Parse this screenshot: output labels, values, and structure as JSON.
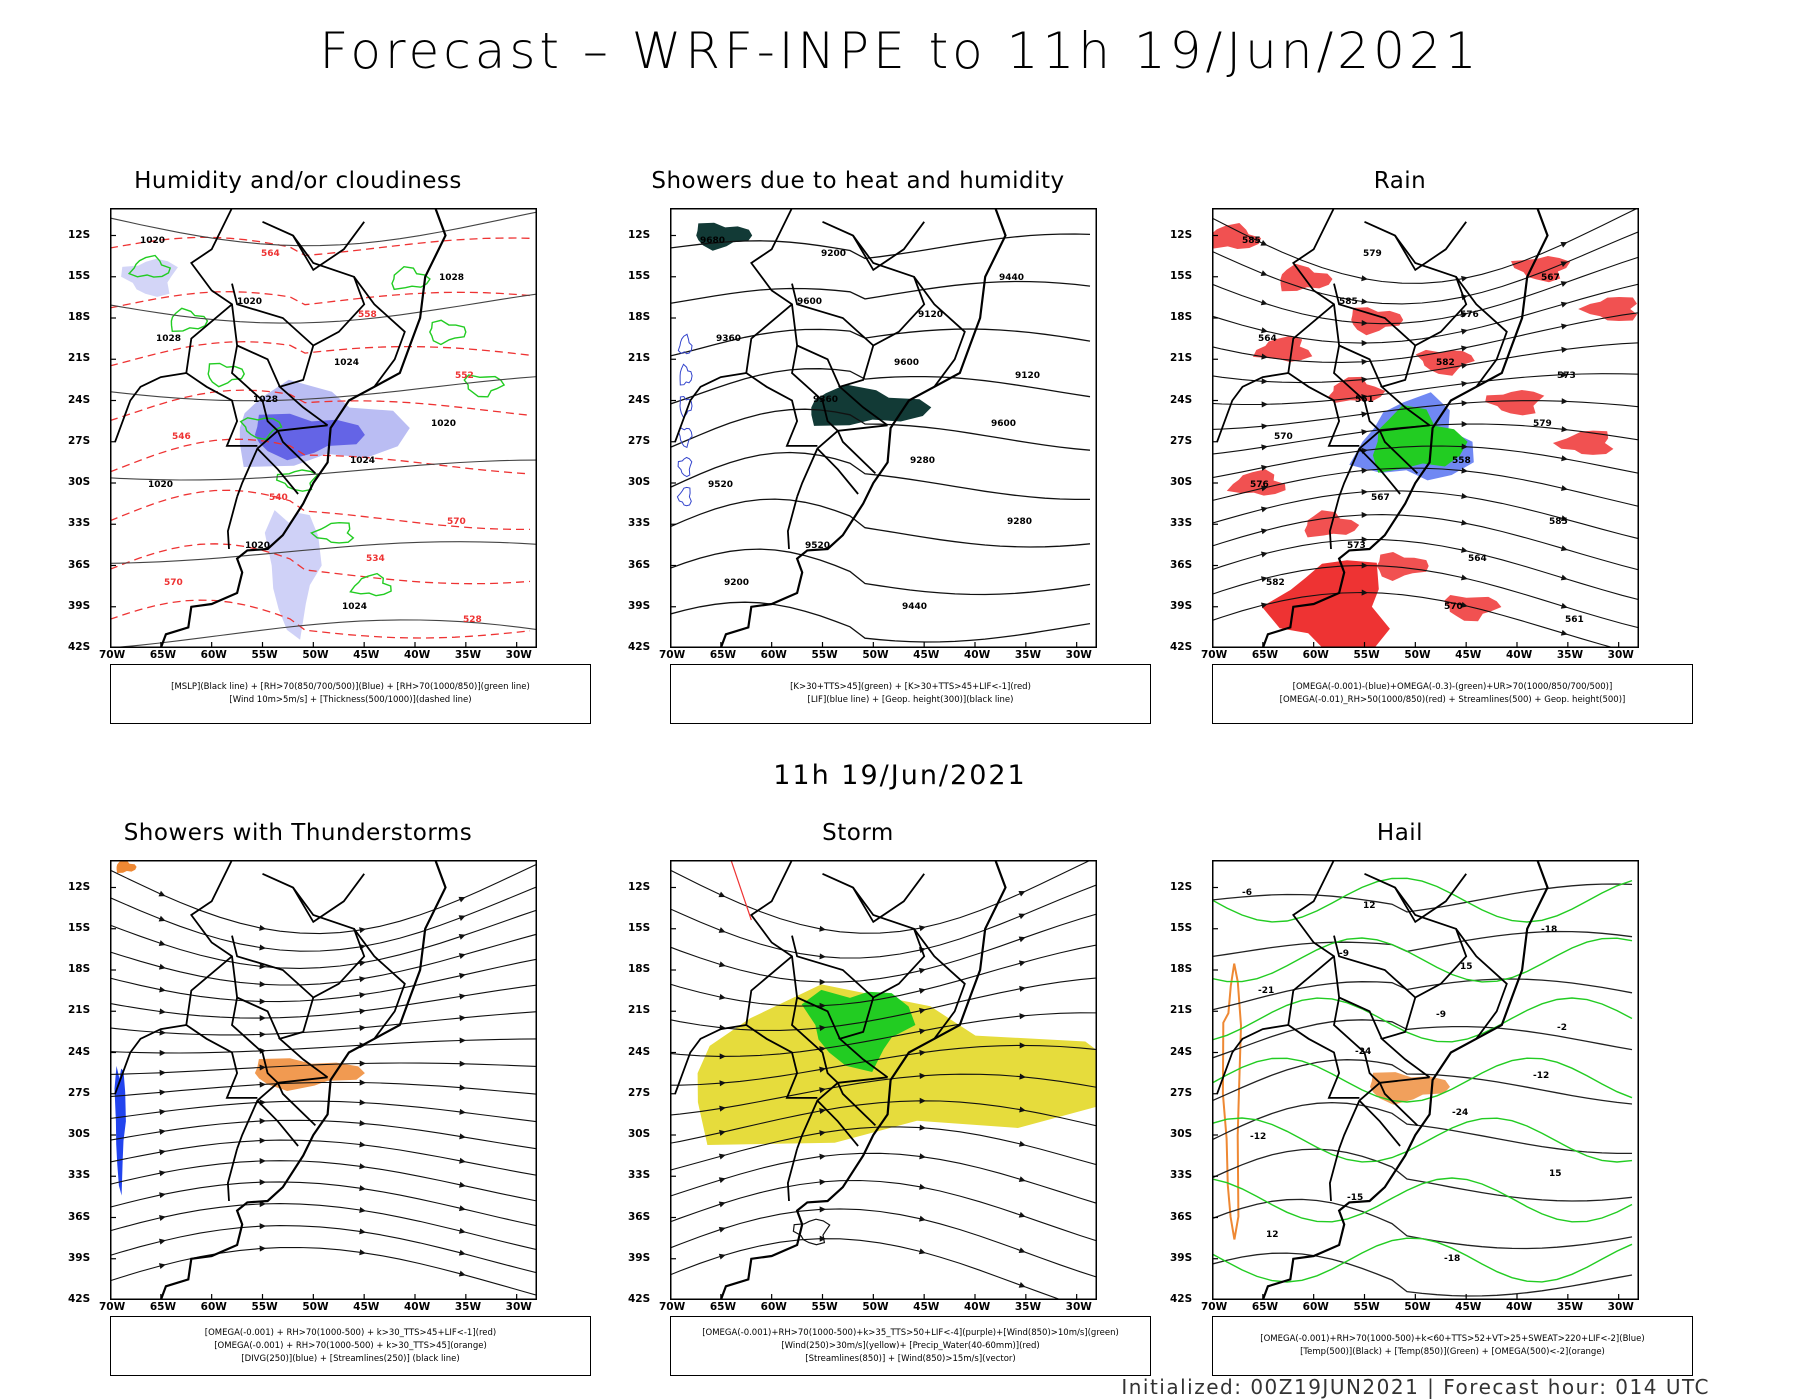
{
  "page": {
    "title": "Forecast – WRF-INPE to 11h 19/Jun/2021",
    "subtitle": "11h 19/Jun/2021",
    "footer": "Initialized: 00Z19JUN2021 | Forecast hour: 014 UTC"
  },
  "axes": {
    "lat_labels": [
      "12S",
      "15S",
      "18S",
      "21S",
      "24S",
      "27S",
      "30S",
      "33S",
      "36S",
      "39S",
      "42S"
    ],
    "lon_labels": [
      "70W",
      "65W",
      "60W",
      "55W",
      "50W",
      "45W",
      "40W",
      "35W",
      "30W"
    ]
  },
  "panels": [
    {
      "title": "Humidity and/or cloudiness",
      "legend": [
        "[MSLP](Black line) + [RH>70(850/700/500)](Blue) + [RH>70(1000/850)](green line)",
        "[Wind 10m>5m/s] + [Thickness(500/1000)](dashed line)"
      ],
      "contours": [
        "1020",
        "1020",
        "1024",
        "1020",
        "1020",
        "1020",
        "1024",
        "1028",
        "1028",
        "1028",
        "1024",
        "570",
        "570",
        "564",
        "558",
        "552",
        "546",
        "540",
        "534",
        "528"
      ]
    },
    {
      "title": "Showers due to heat and humidity",
      "legend": [
        "[K>30+TTS>45](green) + [K>30+TTS>45+LIF<-1](red)",
        "[LIF](blue line) + [Geop. height(300)](black line)"
      ],
      "contours": [
        "9680",
        "9600",
        "9600",
        "9600",
        "9520",
        "9520",
        "9440",
        "9440",
        "9360",
        "9360",
        "9280",
        "9280",
        "9200",
        "9200",
        "9120",
        "9120"
      ]
    },
    {
      "title": "Rain",
      "legend": [
        "[OMEGA(-0.001)-(blue)+OMEGA(-0.3)-(green)+UR>70(1000/850/700/500)]",
        "[OMEGA(-0.01)_RH>50(1000/850)(red) + Streamlines(500) + Geop. height(500)]"
      ],
      "contours": [
        "585",
        "585",
        "582",
        "579",
        "576",
        "573",
        "570",
        "567",
        "564",
        "561",
        "558",
        "585",
        "582",
        "579",
        "576",
        "573",
        "570",
        "567",
        "564",
        "561"
      ]
    },
    {
      "title": "Showers with Thunderstorms",
      "legend": [
        "[OMEGA(-0.001) + RH>70(1000-500) + k>30_TTS>45+LIF<-1](red)",
        "[OMEGA(-0.001) + RH>70(1000-500) + k>30_TTS>45](orange)",
        "[DIVG(250)](blue) + [Streamlines(250)] (black line)"
      ],
      "contours": []
    },
    {
      "title": "Storm",
      "legend": [
        "[OMEGA(-0.001)+RH>70(1000-500)+k>35_TTS>50+LIF<-4](purple)+[Wind(850)>10m/s](green)",
        "[Wind(250)>30m/s](yellow)+ [Precip_Water(40-60mm)](red)",
        "[Streamlines(850)] + [Wind(850)>15m/s](vector)"
      ],
      "contours": []
    },
    {
      "title": "Hail",
      "legend": [
        "[OMEGA(-0.001)+RH>70(1000-500)+k<60+TTS>52+VT>25+SWEAT>220+LIF<-2](Blue)",
        "[Temp(500)](Black) + [Temp(850)](Green) + [OMEGA(500)<-2](orange)"
      ],
      "contours": [
        "-6",
        "-9",
        "-9",
        "-12",
        "-12",
        "-15",
        "-18",
        "-18",
        "-21",
        "-24",
        "-24",
        "15",
        "12",
        "12",
        "15",
        "-2"
      ]
    }
  ],
  "colors": {
    "land_line": "#000000",
    "rh_blue": "#6666ee",
    "green": "#22cc22",
    "red": "#ee3333",
    "orange": "#ee8833",
    "yellow": "#e6dc3c",
    "dark_teal": "#123a36"
  }
}
